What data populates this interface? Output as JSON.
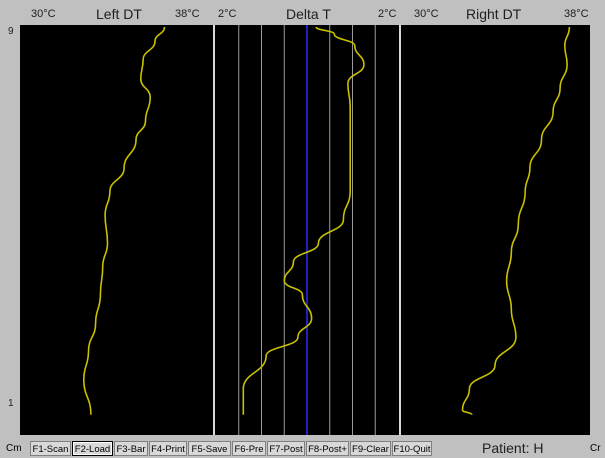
{
  "header": {
    "left": {
      "min": "30°C",
      "title": "Left DT",
      "max": "38°C"
    },
    "center": {
      "min": "2°C",
      "title": "Delta T",
      "max": "2°C"
    },
    "right": {
      "min": "30°C",
      "title": "Right DT",
      "max": "38°C"
    }
  },
  "yaxis": {
    "top_label": "9",
    "bottom_label": "1",
    "unit": "Cm"
  },
  "function_keys": [
    {
      "label": "F1-Scan",
      "active": false
    },
    {
      "label": "F2-Load",
      "active": true
    },
    {
      "label": "F3-Bar",
      "active": false
    },
    {
      "label": "F4-Print",
      "active": false
    },
    {
      "label": "F5-Save",
      "active": false
    },
    {
      "label": "F6-Pre",
      "active": false
    },
    {
      "label": "F7-Post",
      "active": false
    },
    {
      "label": "F8-Post+",
      "active": false
    },
    {
      "label": "F9-Clear",
      "active": false
    },
    {
      "label": "F10-Quit",
      "active": false
    }
  ],
  "status": {
    "patient": "Patient: H",
    "right_unit": "Cr"
  },
  "colors": {
    "trace": "#c8c000",
    "center_line": "#2020c0",
    "grid": "#9a9a9a",
    "background": "#000000"
  },
  "chart_data": {
    "type": "line",
    "y_range_cm": [
      1,
      9
    ],
    "series": [
      {
        "panel": "left",
        "x_range": [
          30,
          38
        ],
        "points": [
          [
            36.0,
            9.0
          ],
          [
            35.6,
            8.7
          ],
          [
            35.1,
            8.3
          ],
          [
            35.0,
            7.9
          ],
          [
            35.4,
            7.5
          ],
          [
            35.2,
            7.0
          ],
          [
            34.8,
            6.6
          ],
          [
            34.3,
            6.0
          ],
          [
            33.7,
            5.5
          ],
          [
            33.5,
            5.0
          ],
          [
            33.6,
            4.4
          ],
          [
            33.4,
            3.9
          ],
          [
            33.3,
            3.3
          ],
          [
            33.1,
            2.7
          ],
          [
            32.8,
            2.1
          ],
          [
            32.6,
            1.5
          ],
          [
            32.9,
            0.75
          ]
        ]
      },
      {
        "panel": "center",
        "x_range": [
          -2,
          2
        ],
        "points": [
          [
            0.2,
            9.0
          ],
          [
            0.6,
            8.85
          ],
          [
            1.05,
            8.6
          ],
          [
            1.25,
            8.2
          ],
          [
            0.9,
            7.8
          ],
          [
            0.95,
            7.3
          ],
          [
            0.95,
            6.7
          ],
          [
            0.95,
            6.1
          ],
          [
            0.95,
            5.5
          ],
          [
            0.8,
            4.9
          ],
          [
            0.25,
            4.4
          ],
          [
            -0.3,
            4.0
          ],
          [
            -0.5,
            3.6
          ],
          [
            -0.1,
            3.3
          ],
          [
            0.1,
            2.8
          ],
          [
            -0.2,
            2.4
          ],
          [
            -0.9,
            2.0
          ],
          [
            -1.4,
            1.3
          ],
          [
            -1.4,
            0.75
          ]
        ]
      },
      {
        "panel": "right",
        "x_range": [
          30,
          38
        ],
        "points": [
          [
            37.2,
            9.0
          ],
          [
            37.0,
            8.6
          ],
          [
            37.1,
            8.2
          ],
          [
            36.8,
            7.7
          ],
          [
            36.5,
            7.2
          ],
          [
            36.0,
            6.6
          ],
          [
            35.5,
            6.0
          ],
          [
            35.3,
            5.5
          ],
          [
            35.0,
            4.8
          ],
          [
            34.7,
            4.2
          ],
          [
            34.5,
            3.6
          ],
          [
            34.7,
            3.0
          ],
          [
            34.9,
            2.4
          ],
          [
            34.0,
            1.8
          ],
          [
            32.9,
            1.3
          ],
          [
            32.6,
            0.85
          ],
          [
            33.0,
            0.75
          ]
        ]
      }
    ]
  }
}
